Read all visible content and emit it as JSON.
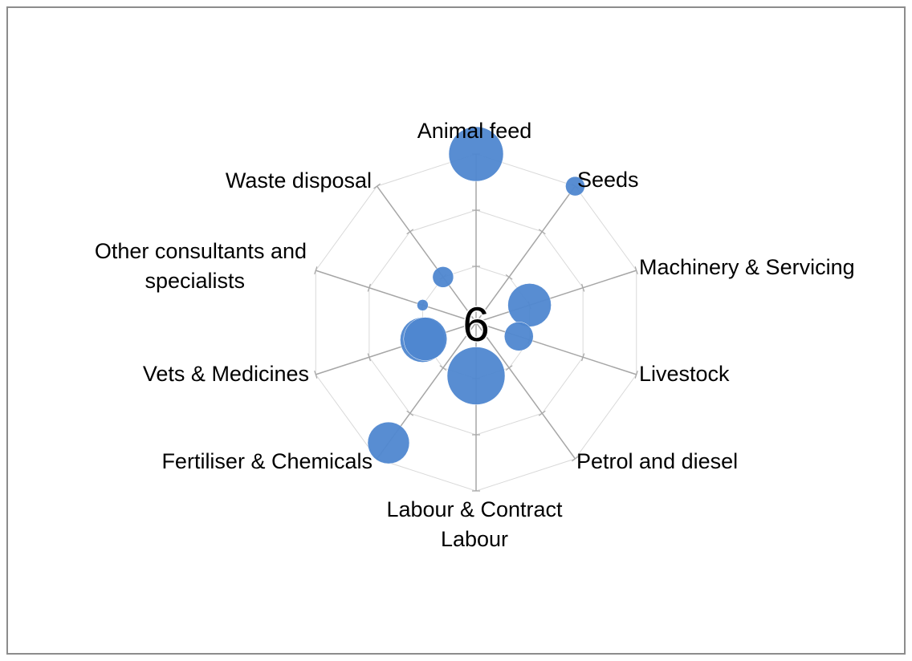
{
  "chart_data": {
    "type": "radar-bubble",
    "title": "",
    "center_label": "6",
    "categories": [
      "Animal feed",
      "Seeds",
      "Machinery & Servicing",
      "Livestock",
      "Petrol and diesel",
      "Labour & Contract Labour",
      "Fertiliser & Chemicals",
      "Vets & Medicines",
      "Other consultants and specialists",
      "Waste disposal"
    ],
    "rlim": [
      0,
      3
    ],
    "grid": true,
    "series": [
      {
        "color": "#4F87D0",
        "points": [
          {
            "category": "Animal feed",
            "value": 3.0,
            "size": 34
          },
          {
            "category": "Seeds",
            "value": 3.0,
            "size": 12
          },
          {
            "category": "Machinery & Servicing",
            "value": 1.0,
            "size": 27
          },
          {
            "category": "Livestock",
            "value": 0.8,
            "size": 18
          },
          {
            "category": "Petrol and diesel",
            "value": 0.0,
            "size": 0
          },
          {
            "category": "Labour & Contract Labour",
            "value": 0.95,
            "size": 36
          },
          {
            "category": "Fertiliser & Chemicals",
            "value": 2.65,
            "size": 26
          },
          {
            "category": "Vets & Medicines",
            "value": 1.0,
            "size": 28
          },
          {
            "category": "Other consultants and specialists",
            "value": 1.0,
            "size": 7
          },
          {
            "category": "Waste disposal",
            "value": 1.0,
            "size": 13
          },
          {
            "category": "Vets & Medicines",
            "value": 0.95,
            "size": 27
          }
        ]
      }
    ],
    "colors": {
      "bubble": "#4F87D0",
      "grid": "#d9d9d9",
      "axis": "#a6a6a6",
      "frame": "#8c8c8c"
    }
  }
}
